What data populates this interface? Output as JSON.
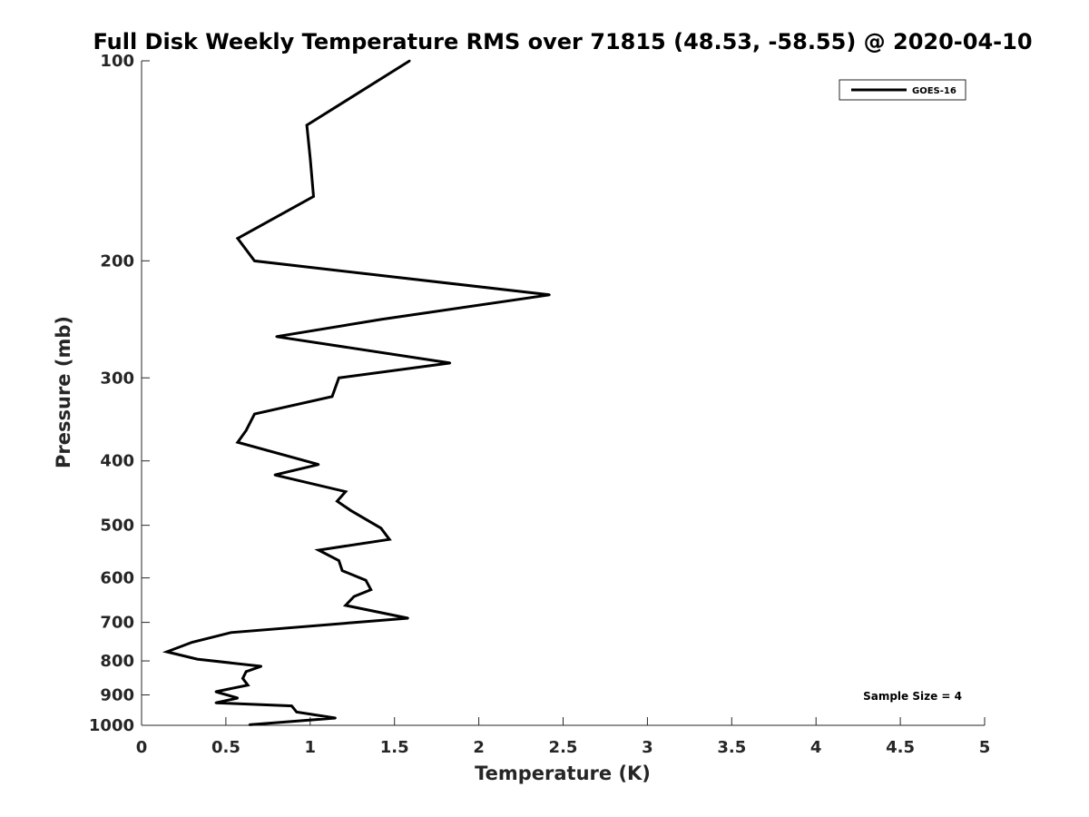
{
  "chart_data": {
    "type": "line",
    "title": "Full Disk Weekly Temperature RMS over 71815 (48.53, -58.55) @ 2020-04-10",
    "xlabel": "Temperature (K)",
    "ylabel": "Pressure (mb)",
    "xlim": [
      0,
      5
    ],
    "ylim": [
      100,
      1000
    ],
    "y_scale": "log",
    "y_reversed": true,
    "grid": false,
    "legend_position": "top-right",
    "x_ticks": [
      "0",
      "0.5",
      "1",
      "1.5",
      "2",
      "2.5",
      "3",
      "3.5",
      "4",
      "4.5",
      "5"
    ],
    "y_ticks": [
      "100",
      "200",
      "300",
      "400",
      "500",
      "600",
      "700",
      "800",
      "900",
      "1000"
    ],
    "annotation": "Sample Size = 4",
    "series": [
      {
        "name": "GOES-16",
        "color": "#000000",
        "points": [
          [
            1.59,
            100
          ],
          [
            0.98,
            125
          ],
          [
            1.0,
            140
          ],
          [
            1.02,
            160
          ],
          [
            0.57,
            185
          ],
          [
            0.67,
            200
          ],
          [
            2.42,
            225
          ],
          [
            1.42,
            245
          ],
          [
            0.8,
            260
          ],
          [
            1.83,
            285
          ],
          [
            1.17,
            300
          ],
          [
            1.13,
            320
          ],
          [
            0.67,
            340
          ],
          [
            0.62,
            360
          ],
          [
            0.57,
            375
          ],
          [
            1.05,
            405
          ],
          [
            0.79,
            420
          ],
          [
            1.21,
            445
          ],
          [
            1.16,
            460
          ],
          [
            1.24,
            475
          ],
          [
            1.42,
            505
          ],
          [
            1.47,
            525
          ],
          [
            1.05,
            545
          ],
          [
            1.17,
            565
          ],
          [
            1.19,
            585
          ],
          [
            1.33,
            605
          ],
          [
            1.36,
            625
          ],
          [
            1.26,
            640
          ],
          [
            1.21,
            660
          ],
          [
            1.58,
            690
          ],
          [
            0.53,
            725
          ],
          [
            0.3,
            750
          ],
          [
            0.15,
            775
          ],
          [
            0.33,
            795
          ],
          [
            0.71,
            815
          ],
          [
            0.62,
            830
          ],
          [
            0.6,
            850
          ],
          [
            0.63,
            870
          ],
          [
            0.44,
            890
          ],
          [
            0.57,
            910
          ],
          [
            0.44,
            925
          ],
          [
            0.89,
            935
          ],
          [
            0.92,
            955
          ],
          [
            1.15,
            975
          ],
          [
            0.64,
            998
          ]
        ]
      }
    ]
  }
}
